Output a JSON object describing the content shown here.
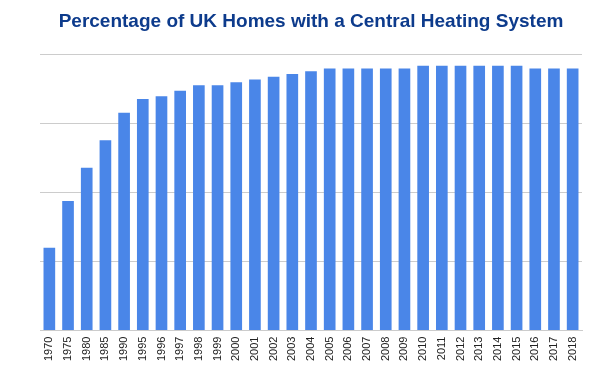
{
  "chart_data": {
    "type": "bar",
    "title": "Percentage of UK Homes with a Central Heating System",
    "categories": [
      "1970",
      "1975",
      "1980",
      "1985",
      "1990",
      "1995",
      "1996",
      "1997",
      "1998",
      "1999",
      "2000",
      "2001",
      "2002",
      "2003",
      "2004",
      "2005",
      "2006",
      "2007",
      "2008",
      "2009",
      "2010",
      "2011",
      "2012",
      "2013",
      "2014",
      "2015",
      "2016",
      "2017",
      "2018"
    ],
    "values": [
      30,
      47,
      59,
      69,
      79,
      84,
      85,
      87,
      89,
      89,
      90,
      91,
      92,
      93,
      94,
      95,
      95,
      95,
      95,
      95,
      96,
      96,
      96,
      96,
      96,
      96,
      95,
      95,
      95
    ],
    "color": "#4a86e8",
    "ylim": [
      0,
      100
    ],
    "yticks": [
      0,
      25,
      50,
      75,
      100
    ],
    "grid": true,
    "tick_labels": "x"
  }
}
